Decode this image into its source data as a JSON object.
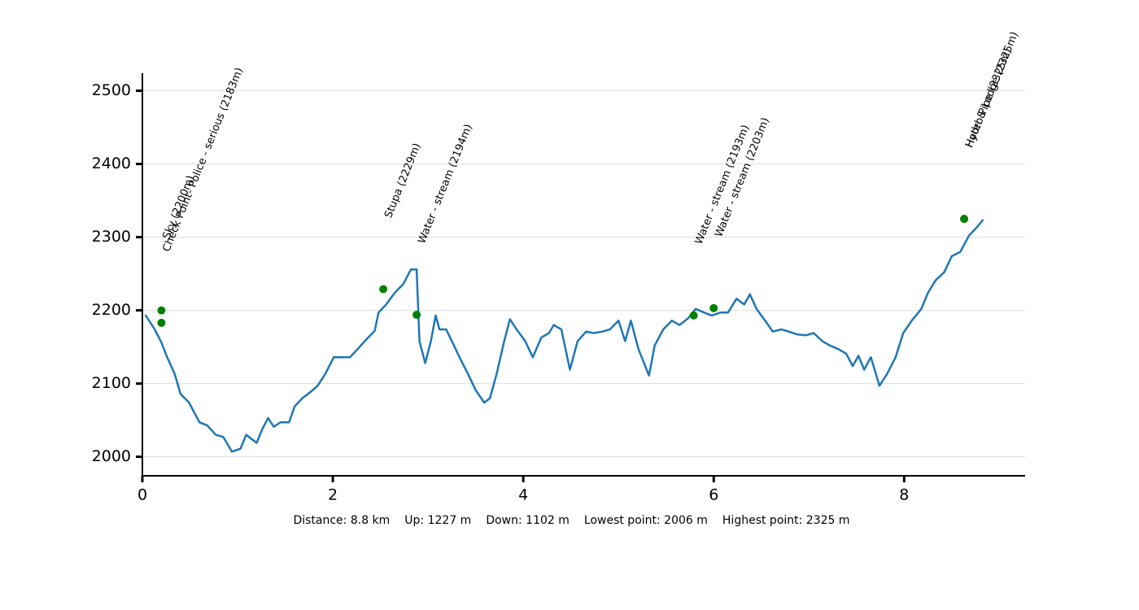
{
  "chart_data": {
    "type": "line",
    "x": [
      0.03,
      0.13,
      0.2,
      0.26,
      0.34,
      0.4,
      0.49,
      0.6,
      0.68,
      0.77,
      0.85,
      0.94,
      1.03,
      1.09,
      1.15,
      1.2,
      1.26,
      1.32,
      1.38,
      1.45,
      1.54,
      1.6,
      1.68,
      1.77,
      1.84,
      1.92,
      2.01,
      2.09,
      2.18,
      2.26,
      2.35,
      2.44,
      2.48,
      2.56,
      2.65,
      2.74,
      2.82,
      2.88,
      2.91,
      2.97,
      3.03,
      3.08,
      3.12,
      3.19,
      3.25,
      3.33,
      3.42,
      3.5,
      3.59,
      3.65,
      3.72,
      3.8,
      3.86,
      3.93,
      4.02,
      4.1,
      4.19,
      4.27,
      4.32,
      4.4,
      4.49,
      4.57,
      4.66,
      4.74,
      4.83,
      4.91,
      5.0,
      5.07,
      5.13,
      5.21,
      5.32,
      5.38,
      5.47,
      5.56,
      5.64,
      5.73,
      5.81,
      5.9,
      5.98,
      6.07,
      6.15,
      6.24,
      6.32,
      6.38,
      6.45,
      6.54,
      6.62,
      6.71,
      6.79,
      6.88,
      6.97,
      7.05,
      7.14,
      7.22,
      7.31,
      7.39,
      7.46,
      7.52,
      7.58,
      7.65,
      7.69,
      7.74,
      7.82,
      7.91,
      7.99,
      8.08,
      8.18,
      8.25,
      8.33,
      8.42,
      8.5,
      8.59,
      8.68,
      8.76,
      8.83
    ],
    "series": [
      {
        "color": "#1f77b4",
        "values": [
          2194,
          2174,
          2156,
          2136,
          2113,
          2086,
          2074,
          2047,
          2043,
          2030,
          2027,
          2007,
          2011,
          2030,
          2024,
          2019,
          2038,
          2053,
          2041,
          2047,
          2047,
          2069,
          2080,
          2089,
          2097,
          2113,
          2136,
          2136,
          2136,
          2147,
          2160,
          2172,
          2197,
          2208,
          2224,
          2236,
          2256,
          2256,
          2158,
          2128,
          2158,
          2193,
          2174,
          2174,
          2158,
          2136,
          2113,
          2091,
          2074,
          2080,
          2113,
          2158,
          2188,
          2174,
          2158,
          2136,
          2163,
          2169,
          2180,
          2174,
          2119,
          2158,
          2171,
          2169,
          2171,
          2174,
          2186,
          2158,
          2186,
          2147,
          2111,
          2152,
          2174,
          2186,
          2180,
          2189,
          2202,
          2197,
          2193,
          2197,
          2197,
          2216,
          2208,
          2222,
          2202,
          2186,
          2171,
          2174,
          2171,
          2167,
          2166,
          2169,
          2158,
          2152,
          2147,
          2141,
          2124,
          2138,
          2119,
          2136,
          2119,
          2097,
          2113,
          2136,
          2169,
          2186,
          2202,
          2224,
          2241,
          2252,
          2274,
          2280,
          2302,
          2313,
          2324
        ]
      }
    ],
    "points": {
      "color": "#008000",
      "x": [
        0.2,
        0.2,
        2.53,
        2.88,
        5.79,
        6.0,
        8.63,
        8.63
      ],
      "values": [
        2200,
        2183,
        2229,
        2194,
        2193,
        2203,
        2325,
        2325
      ],
      "labels": [
        "Sky (2200m)",
        "Check Point- Police - serious (2183m)",
        "Stupa (2229m)",
        "Water - stream (2194m)",
        "Water - stream (2193m)",
        "Water - stream (2203m)",
        "Hotel & Lodge (2325m)",
        "Hydro Pipe (2325m)"
      ]
    },
    "xlim": [
      0,
      9.27
    ],
    "ylim": [
      1974,
      2524
    ],
    "xticks": [
      0,
      2,
      4,
      6,
      8
    ],
    "yticks": [
      2000,
      2100,
      2200,
      2300,
      2400,
      2500
    ],
    "grid": true,
    "footer": [
      "Distance: 8.8 km",
      "Up: 1227 m",
      "Down: 1102 m",
      "Lowest point: 2006 m",
      "Highest point: 2325 m"
    ]
  }
}
